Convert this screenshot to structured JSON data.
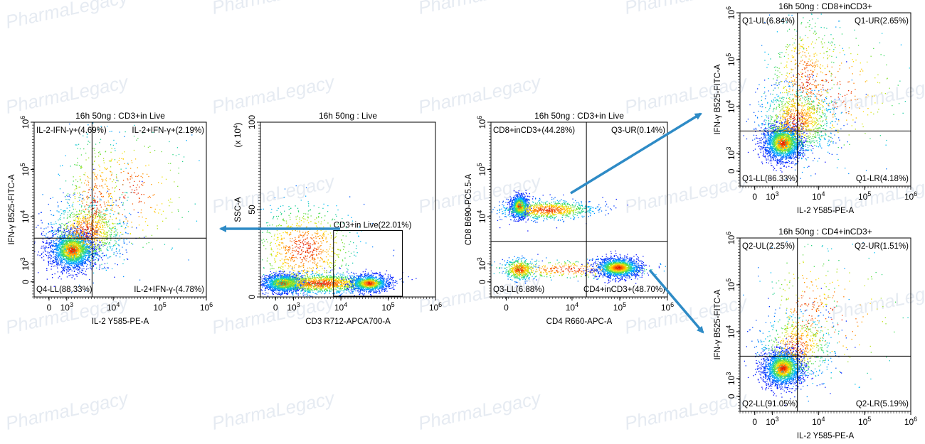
{
  "watermark": {
    "text": "PharmaLegacy",
    "color": "#b8c8dc"
  },
  "colors": {
    "arrow": "#2e8bc6",
    "axis": "#000000",
    "gate": "#000000"
  },
  "chart_data": [
    {
      "type": "scatter",
      "id": "cd3-il2-ifng",
      "title": "16h 50ng : CD3+in Live",
      "xlabel": "IL-2 Y585-PE-A",
      "ylabel": "IFN-γ B525-FITC-A",
      "x_scale": "log",
      "y_scale": "log",
      "xlim": [
        -500,
        1000000
      ],
      "ylim": [
        -500,
        1000000
      ],
      "xticks": [
        "0",
        "10^3",
        "10^4",
        "10^5",
        "10^6"
      ],
      "yticks": [
        "0",
        "10^3",
        "10^4",
        "10^5",
        "10^6"
      ],
      "quadrant_divider": {
        "x": 3500,
        "y": 3500
      },
      "quadrants": [
        {
          "pos": "top-left",
          "label": "IL-2-IFN-γ+(4.69%)",
          "percent": 4.69
        },
        {
          "pos": "top-right",
          "label": "IL-2+IFN-γ+(2.19%)",
          "percent": 2.19
        },
        {
          "pos": "bottom-left",
          "label": "Q4-LL(88.33%)",
          "percent": 88.33
        },
        {
          "pos": "bottom-right",
          "label": "IL-2+IFN-γ-(4.78%)",
          "percent": 4.78
        }
      ]
    },
    {
      "type": "scatter",
      "id": "live-cd3-ssc",
      "title": "16h 50ng : Live",
      "xlabel": "CD3 R712-APCA700-A",
      "ylabel": "SSC-A",
      "y_multiplier": "(x 10^4)",
      "x_scale": "log",
      "y_scale": "linear",
      "xlim": [
        -500,
        1000000
      ],
      "ylim": [
        0,
        100
      ],
      "xticks": [
        "0",
        "10^3",
        "10^4",
        "10^5",
        "10^6"
      ],
      "yticks": [
        "0",
        "50",
        "100"
      ],
      "gates": [
        {
          "label": "CD3+in Live(22.01%)",
          "percent": 22.01,
          "x_range": [
            7000,
            200000
          ],
          "y_range": [
            0,
            38
          ]
        }
      ]
    },
    {
      "type": "scatter",
      "id": "cd3-cd4-cd8",
      "title": "16h 50ng : CD3+in Live",
      "xlabel": "CD4 R660-APC-A",
      "ylabel": "CD8 B690-PC5.5-A",
      "x_scale": "log",
      "y_scale": "log",
      "xlim": [
        -500,
        1000000
      ],
      "ylim": [
        -500,
        1000000
      ],
      "xticks": [
        "0",
        "10^4",
        "10^5",
        "10^6"
      ],
      "yticks": [
        "0",
        "10^3",
        "10^4",
        "10^5",
        "10^6"
      ],
      "quadrant_divider": {
        "x": 20000,
        "y": 3000
      },
      "quadrants": [
        {
          "pos": "top-left",
          "label": "CD8+inCD3+(44.28%)",
          "percent": 44.28
        },
        {
          "pos": "top-right",
          "label": "Q3-UR(0.14%)",
          "percent": 0.14
        },
        {
          "pos": "bottom-left",
          "label": "Q3-LL(6.88%)",
          "percent": 6.88
        },
        {
          "pos": "bottom-right",
          "label": "CD4+inCD3+(48.70%)",
          "percent": 48.7
        }
      ]
    },
    {
      "type": "scatter",
      "id": "cd8-il2-ifng",
      "title": "16h 50ng : CD8+inCD3+",
      "xlabel": "IL-2 Y585-PE-A",
      "ylabel": "IFN-γ B525-FITC-A",
      "x_scale": "log",
      "y_scale": "log",
      "xlim": [
        -500,
        1000000
      ],
      "ylim": [
        -500,
        1000000
      ],
      "xticks": [
        "0",
        "10^3",
        "10^4",
        "10^5",
        "10^6"
      ],
      "yticks": [
        "0",
        "10^3",
        "10^4",
        "10^5",
        "10^6"
      ],
      "quadrant_divider": {
        "x": 3500,
        "y": 3000
      },
      "quadrants": [
        {
          "pos": "top-left",
          "label": "Q1-UL(6.84%)",
          "percent": 6.84
        },
        {
          "pos": "top-right",
          "label": "Q1-UR(2.65%)",
          "percent": 2.65
        },
        {
          "pos": "bottom-left",
          "label": "Q1-LL(86.33%)",
          "percent": 86.33
        },
        {
          "pos": "bottom-right",
          "label": "Q1-LR(4.18%)",
          "percent": 4.18
        }
      ]
    },
    {
      "type": "scatter",
      "id": "cd4-il2-ifng",
      "title": "16h 50ng : CD4+inCD3+",
      "xlabel": "IL-2 Y585-PE-A",
      "ylabel": "IFN-γ B525-FITC-A",
      "x_scale": "log",
      "y_scale": "log",
      "xlim": [
        -500,
        1000000
      ],
      "ylim": [
        -500,
        1000000
      ],
      "xticks": [
        "0",
        "10^3",
        "10^4",
        "10^5",
        "10^6"
      ],
      "yticks": [
        "0",
        "10^3",
        "10^4",
        "10^5",
        "10^6"
      ],
      "quadrant_divider": {
        "x": 3500,
        "y": 3000
      },
      "quadrants": [
        {
          "pos": "top-left",
          "label": "Q2-UL(2.25%)",
          "percent": 2.25
        },
        {
          "pos": "top-right",
          "label": "Q2-UR(1.51%)",
          "percent": 1.51
        },
        {
          "pos": "bottom-left",
          "label": "Q2-LL(91.05%)",
          "percent": 91.05
        },
        {
          "pos": "bottom-right",
          "label": "Q2-LR(5.19%)",
          "percent": 5.19
        }
      ]
    }
  ]
}
